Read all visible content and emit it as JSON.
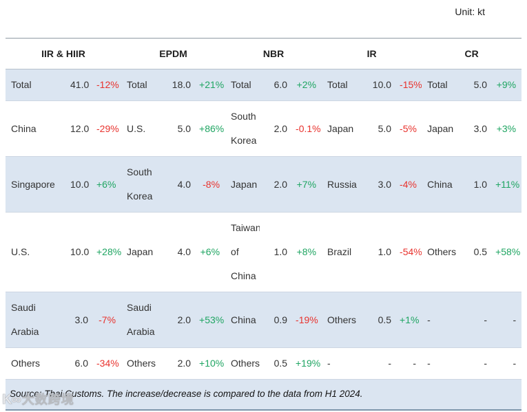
{
  "meta": {
    "unit_label": "Unit: kt"
  },
  "colors": {
    "positive": "#1fa562",
    "negative": "#e8322d",
    "row_shade": "#dbe5f1",
    "footer_rule": "#7d95ab"
  },
  "chart_data": {
    "type": "table",
    "title": "",
    "unit": "kt",
    "column_groups": [
      "IIR & HIIR",
      "EPDM",
      "NBR",
      "IR",
      "CR"
    ],
    "sub_columns": [
      "destination",
      "volume_kt",
      "change_pct"
    ],
    "rows": [
      [
        [
          "Total",
          "41.0",
          "-12%"
        ],
        [
          "Total",
          "18.0",
          "+21%"
        ],
        [
          "Total",
          "6.0",
          "+2%"
        ],
        [
          "Total",
          "10.0",
          "-15%"
        ],
        [
          "Total",
          "5.0",
          "+9%"
        ]
      ],
      [
        [
          "China",
          "12.0",
          "-29%"
        ],
        [
          "U.S.",
          "5.0",
          "+86%"
        ],
        [
          "South Korea",
          "2.0",
          "-0.1%"
        ],
        [
          "Japan",
          "5.0",
          "-5%"
        ],
        [
          "Japan",
          "3.0",
          "+3%"
        ]
      ],
      [
        [
          "Singapore",
          "10.0",
          "+6%"
        ],
        [
          "South Korea",
          "4.0",
          "-8%"
        ],
        [
          "Japan",
          "2.0",
          "+7%"
        ],
        [
          "Russia",
          "3.0",
          "-4%"
        ],
        [
          "China",
          "1.0",
          "+11%"
        ]
      ],
      [
        [
          "U.S.",
          "10.0",
          "+28%"
        ],
        [
          "Japan",
          "4.0",
          "+6%"
        ],
        [
          "Taiwan of China",
          "1.0",
          "+8%"
        ],
        [
          "Brazil",
          "1.0",
          "-54%"
        ],
        [
          "Others",
          "0.5",
          "+58%"
        ]
      ],
      [
        [
          "Saudi Arabia",
          "3.0",
          "-7%"
        ],
        [
          "Saudi Arabia",
          "2.0",
          "+53%"
        ],
        [
          "China",
          "0.9",
          "-19%"
        ],
        [
          "Others",
          "0.5",
          "+1%"
        ],
        [
          "-",
          "-",
          "-"
        ]
      ],
      [
        [
          "Others",
          "6.0",
          "-34%"
        ],
        [
          "Others",
          "2.0",
          "+10%"
        ],
        [
          "Others",
          "0.5",
          "+19%"
        ],
        [
          "-",
          "-",
          "-"
        ],
        [
          "-",
          "-",
          "-"
        ]
      ]
    ]
  },
  "footer": {
    "source_note": "Source: Thai Customs. The increase/decrease is compared to the data from H1 2024."
  },
  "watermark": {
    "logo": "K∞",
    "text": "大数跨境"
  }
}
